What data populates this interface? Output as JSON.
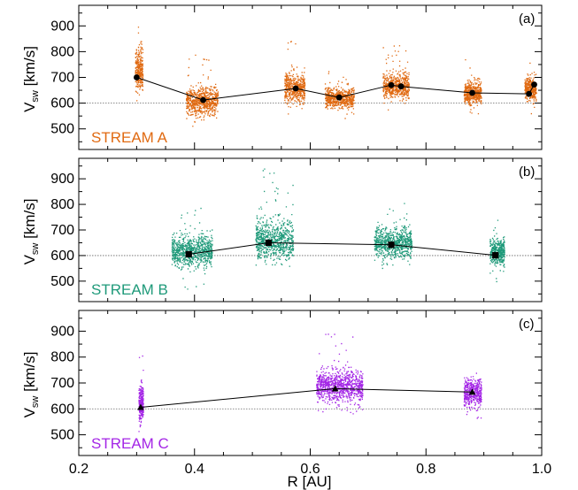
{
  "chart_data": {
    "type": "scatter",
    "xlabel": "R [AU]",
    "xlim": [
      0.2,
      1.0
    ],
    "xticks": [
      "0.2",
      "0.4",
      "0.6",
      "0.8",
      "1.0"
    ],
    "shared_x_axis": true,
    "reference_line": 600,
    "panels": [
      {
        "tag": "(a)",
        "label": "STREAM A",
        "color": "#e06a12",
        "ylabel_main": "V",
        "ylabel_sub": "sw",
        "ylabel_unit": " [km/s]",
        "ylim": [
          420,
          980
        ],
        "yticks": [
          500,
          600,
          700,
          800,
          900
        ],
        "marker": "circle",
        "mean_points": [
          {
            "x": 0.3,
            "y": 700
          },
          {
            "x": 0.415,
            "y": 612
          },
          {
            "x": 0.575,
            "y": 657
          },
          {
            "x": 0.65,
            "y": 622
          },
          {
            "x": 0.74,
            "y": 670
          },
          {
            "x": 0.757,
            "y": 665
          },
          {
            "x": 0.88,
            "y": 640
          },
          {
            "x": 0.978,
            "y": 636
          },
          {
            "x": 0.987,
            "y": 672
          }
        ],
        "clusters": [
          {
            "x0": 0.297,
            "x1": 0.31,
            "ymin": 505,
            "ymax": 985,
            "mean": 730
          },
          {
            "x0": 0.385,
            "x1": 0.44,
            "ymin": 510,
            "ymax": 800,
            "mean": 610
          },
          {
            "x0": 0.555,
            "x1": 0.59,
            "ymin": 560,
            "ymax": 845,
            "mean": 660
          },
          {
            "x0": 0.625,
            "x1": 0.675,
            "ymin": 540,
            "ymax": 735,
            "mean": 622
          },
          {
            "x0": 0.725,
            "x1": 0.77,
            "ymin": 575,
            "ymax": 825,
            "mean": 668
          },
          {
            "x0": 0.865,
            "x1": 0.895,
            "ymin": 560,
            "ymax": 780,
            "mean": 640
          },
          {
            "x0": 0.97,
            "x1": 0.99,
            "ymin": 555,
            "ymax": 785,
            "mean": 660
          }
        ]
      },
      {
        "tag": "(b)",
        "label": "STREAM B",
        "color": "#1f9a7a",
        "ylabel_main": "V",
        "ylabel_sub": "sw",
        "ylabel_unit": " [km/s]",
        "ylim": [
          420,
          980
        ],
        "yticks": [
          500,
          600,
          700,
          800,
          900
        ],
        "marker": "square",
        "mean_points": [
          {
            "x": 0.39,
            "y": 605
          },
          {
            "x": 0.528,
            "y": 650
          },
          {
            "x": 0.74,
            "y": 642
          },
          {
            "x": 0.92,
            "y": 601
          }
        ],
        "clusters": [
          {
            "x0": 0.36,
            "x1": 0.43,
            "ymin": 465,
            "ymax": 790,
            "mean": 620
          },
          {
            "x0": 0.505,
            "x1": 0.57,
            "ymin": 560,
            "ymax": 950,
            "mean": 660
          },
          {
            "x0": 0.71,
            "x1": 0.775,
            "ymin": 540,
            "ymax": 820,
            "mean": 650
          },
          {
            "x0": 0.91,
            "x1": 0.935,
            "ymin": 490,
            "ymax": 755,
            "mean": 615
          }
        ]
      },
      {
        "tag": "(c)",
        "label": "STREAM C",
        "color": "#a426e6",
        "ylabel_main": "V",
        "ylabel_sub": "sw",
        "ylabel_unit": " [km/s]",
        "ylim": [
          420,
          980
        ],
        "yticks": [
          500,
          600,
          700,
          800,
          900
        ],
        "marker": "triangle",
        "mean_points": [
          {
            "x": 0.307,
            "y": 606
          },
          {
            "x": 0.643,
            "y": 678
          },
          {
            "x": 0.88,
            "y": 665
          }
        ],
        "clusters": [
          {
            "x0": 0.303,
            "x1": 0.311,
            "ymin": 510,
            "ymax": 860,
            "mean": 620
          },
          {
            "x0": 0.61,
            "x1": 0.69,
            "ymin": 580,
            "ymax": 900,
            "mean": 690
          },
          {
            "x0": 0.865,
            "x1": 0.895,
            "ymin": 560,
            "ymax": 820,
            "mean": 665
          }
        ]
      }
    ]
  }
}
